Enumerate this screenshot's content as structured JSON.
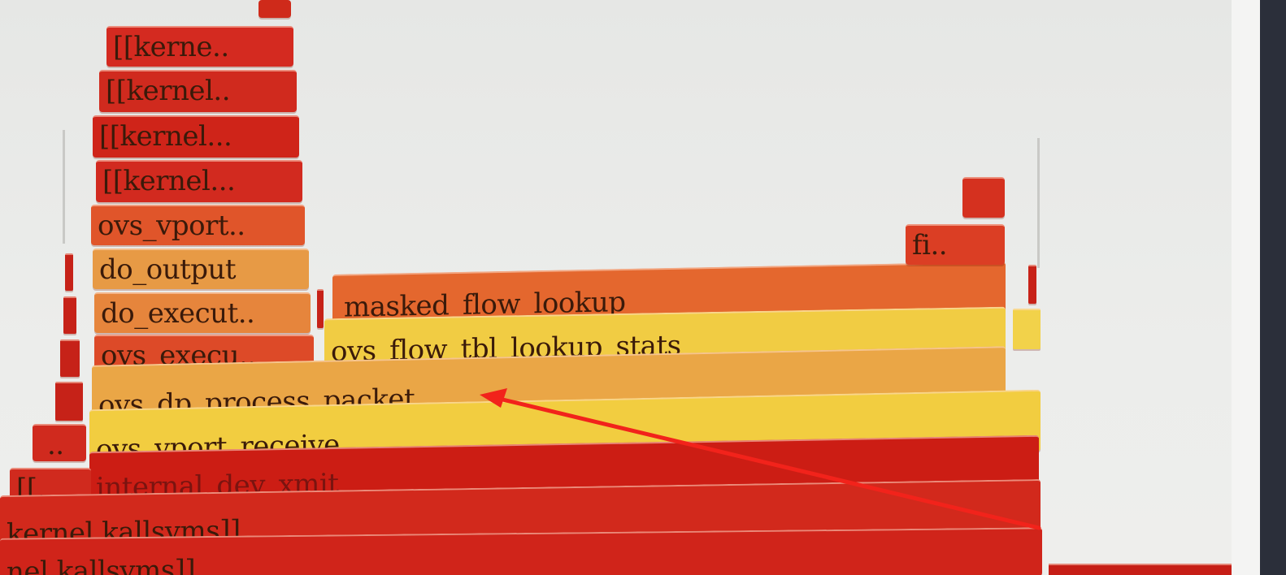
{
  "frames": [
    {
      "id": "f-top-tick",
      "label": "",
      "color": "#cf2a1a"
    },
    {
      "id": "f-kern1",
      "label": "[[kerne..",
      "color": "#d42a20"
    },
    {
      "id": "f-kern2",
      "label": "[[kernel..",
      "color": "#d02a1e"
    },
    {
      "id": "f-kern3",
      "label": "[[kernel...",
      "color": "#cf2419"
    },
    {
      "id": "f-kern4",
      "label": "[[kernel...",
      "color": "#d22a1f"
    },
    {
      "id": "f-ovs-vport",
      "label": "ovs_vport..",
      "color": "#e0552a"
    },
    {
      "id": "f-do-output",
      "label": "do_output",
      "color": "#e79a45"
    },
    {
      "id": "f-do-execut",
      "label": "do_execut..",
      "color": "#e6853c"
    },
    {
      "id": "f-masked-flow",
      "label": "masked_flow_lookup",
      "color": "#e4672e"
    },
    {
      "id": "f-ovs-execu",
      "label": "ovs_execu..",
      "color": "#dd4a28"
    },
    {
      "id": "f-ovs-flow-tbl",
      "label": "ovs_flow_tbl_lookup_stats",
      "color": "#f1cc43"
    },
    {
      "id": "f-ovs-dp",
      "label": "ovs_dp_process_packet",
      "color": "#eaa646"
    },
    {
      "id": "f-ovs-vport-recv",
      "label": "ovs_vport_receive",
      "color": "#f2cd40"
    },
    {
      "id": "f-small-left",
      "label": "..",
      "color": "#d02a1e"
    },
    {
      "id": "f-internal-dev",
      "label": "internal_dev_xmit",
      "color": "#cc1d14"
    },
    {
      "id": "f-kk-left",
      "label": "[[...",
      "color": "#d02a1e"
    },
    {
      "id": "f-kallsyms1",
      "label": "kernel.kallsyms]]",
      "color": "#d2291c"
    },
    {
      "id": "f-kallsyms2",
      "label": "nel.kallsyms]]",
      "color": "#d0241a"
    },
    {
      "id": "f-fi",
      "label": "fi..",
      "color": "#db3e24"
    },
    {
      "id": "f-fi-top",
      "label": "",
      "color": "#d5311f"
    },
    {
      "id": "f-right-slim",
      "label": "",
      "color": "#c72218"
    },
    {
      "id": "f-right-yellow",
      "label": "",
      "color": "#f2d24a"
    },
    {
      "id": "f-left-slim1",
      "label": "",
      "color": "#c62218"
    },
    {
      "id": "f-left-slim2",
      "label": "",
      "color": "#c62218"
    },
    {
      "id": "f-left-slim3",
      "label": "",
      "color": "#c62218"
    },
    {
      "id": "f-left-slim4",
      "label": "",
      "color": "#c62218"
    }
  ],
  "annotation": {
    "color": "#f2231b"
  }
}
